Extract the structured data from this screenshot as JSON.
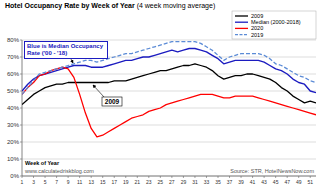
{
  "chart_data": {
    "type": "line",
    "title": "Hotel Occupancy Rate by Week of Year",
    "subtitle": "(4 week moving average)",
    "x_label": "Week of Year",
    "source": "Source: STR, HotelNewsNow.com",
    "watermark": "www.calculatedriskblog.com",
    "annotations": [
      {
        "text": "Blue is Median Occupancy Rate ('00 - '18)"
      },
      {
        "text": "2009"
      }
    ],
    "x": [
      1,
      2,
      3,
      4,
      5,
      6,
      7,
      8,
      9,
      10,
      11,
      12,
      13,
      14,
      15,
      16,
      17,
      18,
      19,
      20,
      21,
      22,
      23,
      24,
      25,
      26,
      27,
      28,
      29,
      30,
      31,
      32,
      33,
      34,
      35,
      36,
      37,
      38,
      39,
      40,
      41,
      42,
      43,
      44,
      45,
      46,
      47,
      48,
      49,
      50,
      51,
      52
    ],
    "xlim": [
      1,
      52
    ],
    "xticks": [
      1,
      3,
      5,
      7,
      9,
      11,
      13,
      15,
      17,
      19,
      21,
      23,
      25,
      27,
      29,
      31,
      33,
      35,
      37,
      39,
      41,
      43,
      45,
      47,
      49,
      51
    ],
    "ylim": [
      0,
      80
    ],
    "yticks": [
      {
        "value": 0,
        "label": "0%"
      },
      {
        "value": 10,
        "label": "10%"
      },
      {
        "value": 20,
        "label": "20%"
      },
      {
        "value": 30,
        "label": "30%"
      },
      {
        "value": 40,
        "label": "40%"
      },
      {
        "value": 50,
        "label": "50%"
      },
      {
        "value": 60,
        "label": "60%"
      },
      {
        "value": 70,
        "label": "70%"
      },
      {
        "value": 80,
        "label": "80%"
      }
    ],
    "grid": true,
    "legend": "upper right",
    "series": [
      {
        "name": "2009",
        "color": "#000000",
        "line_style": "solid",
        "values": [
          42,
          45,
          48,
          50,
          52,
          53,
          54,
          54,
          55,
          55,
          55,
          55,
          55,
          55,
          55,
          55,
          56,
          56,
          56,
          57,
          58,
          59,
          60,
          61,
          62,
          62,
          63,
          64,
          65,
          65,
          66,
          65,
          64,
          62,
          59,
          57,
          58,
          59,
          59,
          60,
          60,
          59,
          58,
          57,
          55,
          52,
          50,
          47,
          45,
          43,
          44,
          43
        ]
      },
      {
        "name": "Median (2000-2018)",
        "color": "#1c1cc0",
        "line_style": "solid",
        "values": [
          50,
          54,
          57,
          59,
          60,
          61,
          62,
          63,
          64,
          65,
          65,
          65,
          64,
          64,
          64,
          65,
          66,
          67,
          68,
          68,
          69,
          70,
          70,
          71,
          72,
          73,
          74,
          73,
          74,
          75,
          75,
          74,
          73,
          71,
          69,
          66,
          67,
          68,
          68,
          68,
          68,
          68,
          67,
          65,
          63,
          62,
          60,
          57,
          55,
          54,
          50,
          49
        ]
      },
      {
        "name": "2020",
        "color": "#ff0000",
        "line_style": "solid",
        "values": [
          48,
          52,
          55,
          59,
          60,
          62,
          63,
          64,
          63,
          58,
          48,
          37,
          28,
          23,
          24,
          26,
          28,
          30,
          32,
          34,
          35,
          36,
          38,
          39,
          40,
          42,
          43,
          44,
          45,
          46,
          47,
          48,
          48,
          48,
          47,
          46,
          46,
          47,
          47,
          47,
          47,
          46,
          45,
          44,
          43,
          42,
          41,
          40,
          39,
          38,
          37,
          36
        ]
      },
      {
        "name": "2019",
        "color": "#5b8bd6",
        "line_style": "dashed",
        "values": [
          48,
          52,
          56,
          60,
          61,
          62,
          63,
          64,
          65,
          66,
          67,
          68,
          68,
          67,
          68,
          69,
          70,
          71,
          72,
          72,
          73,
          74,
          75,
          76,
          77,
          78,
          79,
          79,
          79,
          79,
          79,
          78,
          76,
          74,
          71,
          68,
          70,
          71,
          72,
          72,
          72,
          72,
          71,
          69,
          66,
          65,
          63,
          61,
          59,
          58,
          56,
          55
        ]
      }
    ]
  }
}
